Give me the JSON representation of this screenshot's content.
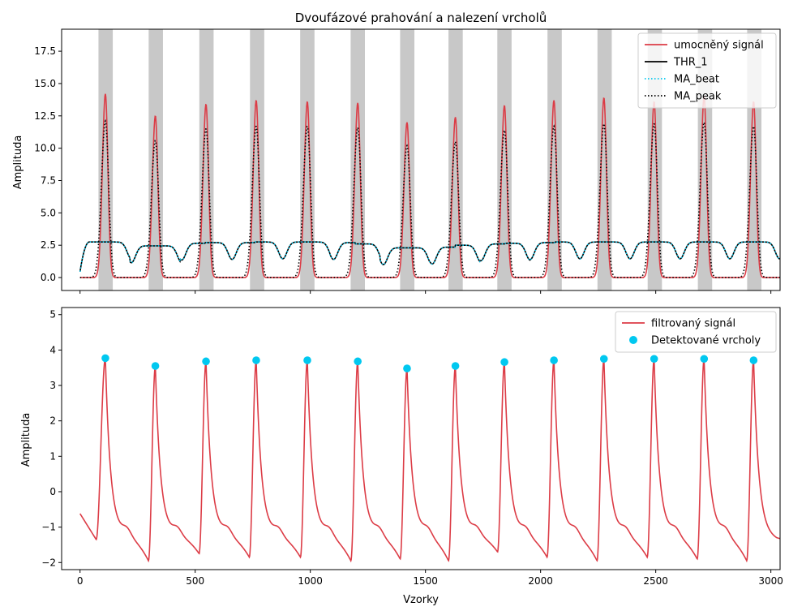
{
  "chart_data": [
    {
      "type": "line",
      "title": "Dvoufázové prahování a nalezení vrcholů",
      "xlabel": "",
      "ylabel": "Amplituda",
      "xlim": [
        -80,
        3040
      ],
      "ylim": [
        -1.0,
        19.2
      ],
      "x_ticks": [
        0,
        500,
        1000,
        1500,
        2000,
        2500,
        3000
      ],
      "x_tick_labels_visible": false,
      "y_ticks": [
        0.0,
        2.5,
        5.0,
        7.5,
        10.0,
        12.5,
        15.0,
        17.5
      ],
      "y_tick_labels": [
        "0.0",
        "2.5",
        "5.0",
        "7.5",
        "10.0",
        "12.5",
        "15.0",
        "17.5"
      ],
      "grid": false,
      "legend_position": "top-right",
      "peak_positions": [
        110,
        327,
        547,
        765,
        987,
        1206,
        1420,
        1630,
        1843,
        2058,
        2275,
        2493,
        2710,
        2925
      ],
      "series": [
        {
          "name": "umocněný signál",
          "color": "#dc3c46",
          "style": "solid",
          "kind": "squared_signal",
          "peak_values": [
            14.2,
            12.5,
            13.4,
            13.7,
            13.6,
            13.5,
            12.0,
            12.4,
            13.3,
            13.7,
            13.9,
            13.6,
            14.0,
            13.6
          ]
        },
        {
          "name": "THR_1",
          "color": "#000000",
          "style": "solid",
          "kind": "threshold"
        },
        {
          "name": "MA_beat",
          "color": "#00c8f0",
          "style": "dotted",
          "kind": "ma_beat",
          "plateau_values": [
            2.75,
            2.75,
            2.45,
            2.45,
            2.65,
            2.7,
            2.7,
            2.75,
            2.75,
            2.75,
            2.7,
            2.6,
            2.3,
            2.3,
            2.35,
            2.5,
            2.6,
            2.65,
            2.7,
            2.75,
            2.75,
            2.75,
            2.75,
            2.75,
            2.75,
            2.75,
            2.75,
            2.75
          ]
        },
        {
          "name": "MA_peak",
          "color": "#000000",
          "style": "dotted",
          "kind": "ma_peak",
          "peak_values": [
            12.1,
            10.6,
            11.5,
            11.7,
            11.7,
            11.6,
            10.2,
            10.5,
            11.4,
            11.7,
            11.9,
            11.9,
            12.0,
            11.7
          ]
        }
      ],
      "blocks_of_interest": [
        [
          80,
          142
        ],
        [
          298,
          360
        ],
        [
          518,
          580
        ],
        [
          738,
          800
        ],
        [
          956,
          1018
        ],
        [
          1175,
          1237
        ],
        [
          1390,
          1452
        ],
        [
          1600,
          1662
        ],
        [
          1812,
          1874
        ],
        [
          2030,
          2092
        ],
        [
          2247,
          2309
        ],
        [
          2465,
          2527
        ],
        [
          2683,
          2745
        ],
        [
          2897,
          2959
        ]
      ],
      "block_color": "#c8c8c8"
    },
    {
      "type": "line",
      "title": "",
      "xlabel": "Vzorky",
      "ylabel": "Amplituda",
      "xlim": [
        -80,
        3040
      ],
      "ylim": [
        -2.2,
        5.2
      ],
      "x_ticks": [
        0,
        500,
        1000,
        1500,
        2000,
        2500,
        3000
      ],
      "x_tick_labels": [
        "0",
        "500",
        "1000",
        "1500",
        "2000",
        "2500",
        "3000"
      ],
      "y_ticks": [
        -2,
        -1,
        0,
        1,
        2,
        3,
        4,
        5
      ],
      "y_tick_labels": [
        "−2",
        "−1",
        "0",
        "1",
        "2",
        "3",
        "4",
        "5"
      ],
      "grid": false,
      "legend_position": "top-right",
      "series": [
        {
          "name": "filtrovaný signál",
          "color": "#dc3c46",
          "style": "solid",
          "kind": "filtered_signal",
          "start_value": -0.62,
          "end_value": -1.35,
          "trough_values": [
            -1.95,
            -1.75,
            -1.85,
            -1.85,
            -1.95,
            -1.9,
            -1.95,
            -1.7,
            -1.85,
            -1.95,
            -1.85,
            -1.9,
            -1.95,
            -1.9
          ]
        },
        {
          "name": "Detektované vrcholy",
          "color": "#00c8f0",
          "style": "marker",
          "kind": "detected_peaks",
          "x": [
            110,
            327,
            547,
            765,
            987,
            1206,
            1420,
            1630,
            1843,
            2058,
            2275,
            2493,
            2710,
            2925
          ],
          "y": [
            3.77,
            3.55,
            3.68,
            3.71,
            3.71,
            3.68,
            3.48,
            3.55,
            3.66,
            3.71,
            3.75,
            3.75,
            3.75,
            3.71
          ]
        }
      ]
    }
  ]
}
